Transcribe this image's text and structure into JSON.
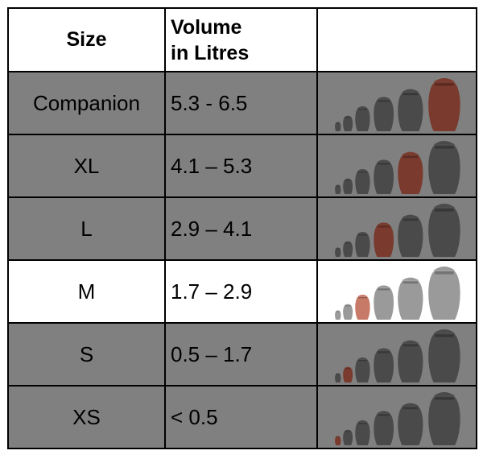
{
  "header": {
    "size_label": "Size",
    "volume_label_line1": "Volume",
    "volume_label_line2": "in Litres"
  },
  "rows": [
    {
      "size": "Companion",
      "volume": "5.3 - 6.5",
      "highlight_index": 5,
      "highlighted_row": false
    },
    {
      "size": "XL",
      "volume": "4.1 – 5.3",
      "highlight_index": 4,
      "highlighted_row": false
    },
    {
      "size": "L",
      "volume": "2.9 – 4.1",
      "highlight_index": 3,
      "highlighted_row": false
    },
    {
      "size": "M",
      "volume": "1.7 – 2.9",
      "highlight_index": 2,
      "highlighted_row": true
    },
    {
      "size": "S",
      "volume": "0.5 – 1.7",
      "highlight_index": 1,
      "highlighted_row": false
    },
    {
      "size": "XS",
      "volume": "< 0.5",
      "highlight_index": 0,
      "highlighted_row": false
    }
  ],
  "colors": {
    "dim_row_bg": "#808080",
    "highlight_row_bg": "#ffffff",
    "urn_dark": "#4a4a4a",
    "urn_light": "#9a9a9a",
    "urn_selected": "#7a3a2e",
    "urn_selected_light": "#c87a68"
  },
  "urn_count": 6
}
